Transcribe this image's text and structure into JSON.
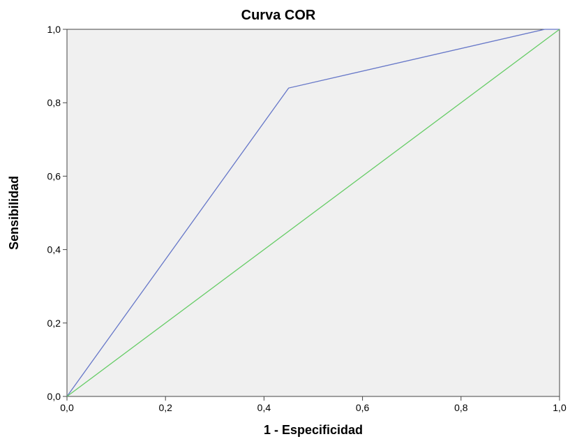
{
  "chart_data": {
    "type": "line",
    "title": "Curva COR",
    "xlabel": "1 - Especificidad",
    "ylabel": "Sensibilidad",
    "xlim": [
      0,
      1
    ],
    "ylim": [
      0,
      1
    ],
    "x_ticks": [
      "0,0",
      "0,2",
      "0,4",
      "0,6",
      "0,8",
      "1,0"
    ],
    "y_ticks": [
      "0,0",
      "0,2",
      "0,4",
      "0,6",
      "0,8",
      "1,0"
    ],
    "grid": false,
    "plot_background": "#f0f0f0",
    "series": [
      {
        "color": "#6677c8",
        "x": [
          0.0,
          0.45,
          0.97,
          1.0
        ],
        "y": [
          0.0,
          0.84,
          1.0,
          1.0
        ]
      },
      {
        "color": "#66cc66",
        "x": [
          0.0,
          1.0
        ],
        "y": [
          0.0,
          1.0
        ]
      }
    ]
  }
}
